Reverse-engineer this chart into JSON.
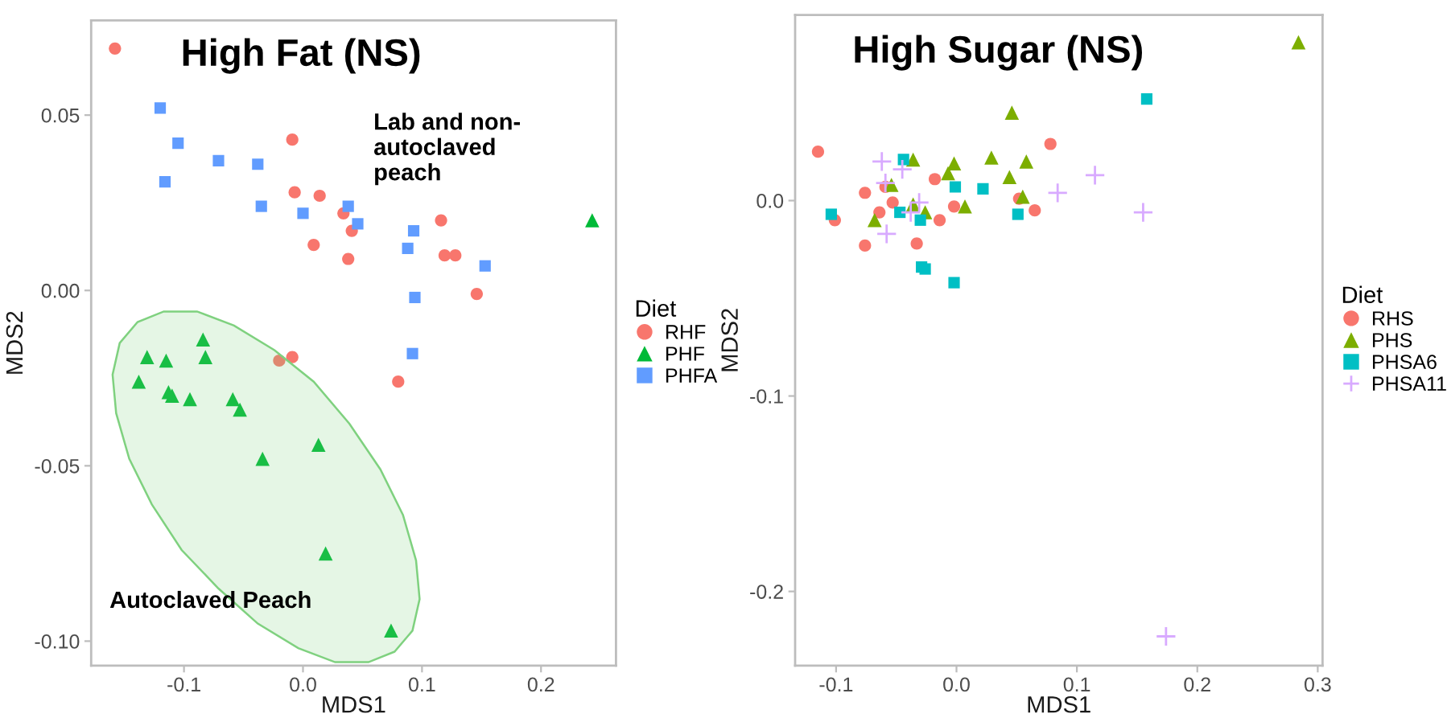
{
  "chart_data": [
    {
      "type": "scatter",
      "title": "High Fat (NS)",
      "xlabel": "MDS1",
      "ylabel": "MDS2",
      "legend_title": "Diet",
      "legend": "right",
      "grid": false,
      "annotations": [
        "Lab and non-\nautoclaved\npeach",
        "Autoclaved Peach"
      ],
      "xlim": [
        -0.178,
        0.263
      ],
      "xticks": [
        -0.1,
        {
          "value": 0,
          "label": "0.0"
        },
        0.1,
        0.2
      ],
      "ylim": [
        -0.107,
        0.077
      ],
      "yticks": [
        {
          "value": 0.05,
          "label": "0.05"
        },
        {
          "value": 0,
          "label": "0.00"
        },
        {
          "value": -0.05,
          "label": "-0.05"
        },
        {
          "value": -0.1,
          "label": "-0.10"
        }
      ],
      "series": [
        {
          "name": "RHF",
          "color": "#f8766d",
          "marker": "circle",
          "x": [
            -0.158,
            -0.009,
            -0.007,
            0.014,
            0.034,
            0.041,
            0.009,
            0.038,
            0.116,
            0.119,
            0.128,
            0.146,
            -0.009,
            -0.02,
            0.08
          ],
          "values": [
            0.069,
            0.043,
            0.028,
            0.027,
            0.022,
            0.017,
            0.013,
            0.009,
            0.02,
            0.01,
            0.01,
            -0.001,
            -0.019,
            -0.02,
            -0.026
          ]
        },
        {
          "name": "PHF",
          "color": "#00ba38",
          "marker": "triangle",
          "x": [
            -0.084,
            -0.131,
            -0.115,
            -0.082,
            -0.138,
            -0.113,
            -0.11,
            -0.095,
            -0.059,
            -0.053,
            0.013,
            -0.034,
            0.019,
            0.074,
            0.243
          ],
          "values": [
            -0.014,
            -0.019,
            -0.02,
            -0.019,
            -0.026,
            -0.029,
            -0.03,
            -0.031,
            -0.031,
            -0.034,
            -0.044,
            -0.048,
            -0.075,
            -0.097,
            0.02
          ]
        },
        {
          "name": "PHFA",
          "color": "#619cff",
          "marker": "square",
          "x": [
            -0.12,
            -0.105,
            -0.116,
            -0.071,
            -0.038,
            -0.035,
            0.0,
            0.038,
            0.046,
            0.093,
            0.088,
            0.094,
            0.153,
            0.092
          ],
          "values": [
            0.052,
            0.042,
            0.031,
            0.037,
            0.036,
            0.024,
            0.022,
            0.024,
            0.019,
            0.017,
            0.012,
            -0.002,
            0.007,
            -0.018
          ]
        },
        {
          "type": "area",
          "color": "#7fd17f",
          "x": [
            0.077,
            0.055,
            0.027,
            -0.004,
            -0.038,
            -0.071,
            -0.102,
            -0.127,
            -0.146,
            -0.157,
            -0.16,
            -0.154,
            -0.139,
            -0.117,
            -0.089,
            -0.058,
            -0.024,
            0.009,
            0.039,
            0.065,
            0.084,
            0.095,
            0.098,
            0.092,
            0.077
          ],
          "values": [
            -0.103,
            -0.106,
            -0.106,
            -0.102,
            -0.095,
            -0.085,
            -0.074,
            -0.061,
            -0.048,
            -0.035,
            -0.024,
            -0.015,
            -0.009,
            -0.006,
            -0.006,
            -0.01,
            -0.017,
            -0.026,
            -0.038,
            -0.051,
            -0.064,
            -0.077,
            -0.088,
            -0.097,
            -0.103
          ]
        }
      ]
    },
    {
      "type": "scatter",
      "title": "High Sugar (NS)",
      "xlabel": "MDS1",
      "ylabel": "MDS2",
      "legend_title": "Diet",
      "legend": "right",
      "grid": false,
      "xlim": [
        -0.134,
        0.304
      ],
      "xticks": [
        -0.1,
        {
          "value": 0,
          "label": "0.0"
        },
        0.1,
        0.2,
        0.3
      ],
      "ylim": [
        -0.238,
        0.095
      ],
      "yticks": [
        {
          "value": 0,
          "label": "0.0"
        },
        -0.1,
        -0.2
      ],
      "series": [
        {
          "name": "RHS",
          "color": "#f8766d",
          "marker": "circle",
          "x": [
            -0.115,
            -0.101,
            -0.076,
            -0.076,
            -0.059,
            -0.053,
            -0.064,
            -0.033,
            -0.018,
            -0.014,
            -0.002,
            0.078,
            0.052,
            0.065
          ],
          "values": [
            0.025,
            -0.01,
            0.004,
            -0.023,
            0.007,
            -0.001,
            -0.006,
            -0.022,
            0.011,
            -0.01,
            -0.003,
            0.029,
            0.001,
            -0.005
          ]
        },
        {
          "name": "PHS",
          "color": "#7cae00",
          "marker": "triangle",
          "x": [
            0.046,
            -0.036,
            -0.002,
            -0.007,
            0.029,
            0.058,
            -0.054,
            0.044,
            0.055,
            -0.036,
            -0.026,
            0.007,
            -0.068,
            0.284
          ],
          "values": [
            0.045,
            0.021,
            0.019,
            0.014,
            0.022,
            0.02,
            0.008,
            0.012,
            0.002,
            -0.002,
            -0.006,
            -0.003,
            -0.01,
            0.081
          ]
        },
        {
          "name": "PHSA6",
          "color": "#00bfc4",
          "marker": "square",
          "x": [
            -0.104,
            -0.044,
            -0.047,
            -0.03,
            -0.001,
            0.022,
            0.051,
            -0.029,
            -0.026,
            -0.002,
            0.158
          ],
          "values": [
            -0.007,
            0.021,
            -0.006,
            -0.01,
            0.007,
            0.006,
            -0.007,
            -0.034,
            -0.035,
            -0.042,
            0.052
          ]
        },
        {
          "name": "PHSA11",
          "color": "#d8aaff",
          "marker": "cross",
          "x": [
            -0.062,
            -0.045,
            -0.059,
            -0.031,
            -0.038,
            -0.058,
            0.084,
            0.115,
            0.155,
            0.174
          ],
          "values": [
            0.02,
            0.016,
            0.009,
            -0.001,
            -0.006,
            -0.017,
            0.004,
            0.013,
            -0.006,
            -0.223
          ]
        }
      ]
    }
  ]
}
